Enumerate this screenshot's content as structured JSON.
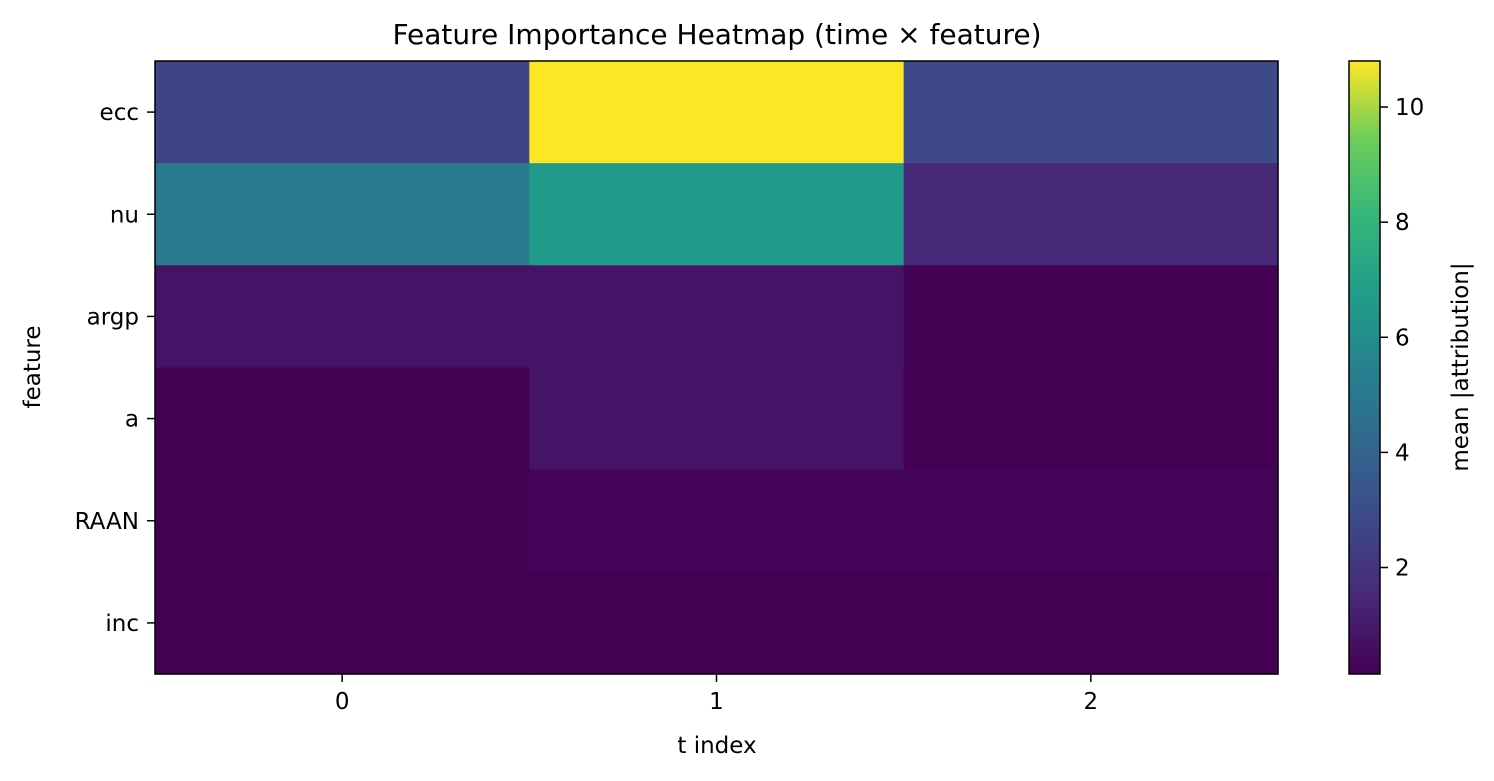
{
  "chart_data": {
    "type": "heatmap",
    "title": "Feature Importance Heatmap (time × feature)",
    "xlabel": "t index",
    "ylabel": "feature",
    "x": [
      "0",
      "1",
      "2"
    ],
    "y": [
      "ecc",
      "nu",
      "argp",
      "a",
      "RAAN",
      "inc"
    ],
    "values": [
      [
        2.6,
        10.8,
        2.8
      ],
      [
        5.0,
        6.6,
        1.5
      ],
      [
        0.8,
        0.8,
        0.2
      ],
      [
        0.15,
        0.8,
        0.15
      ],
      [
        0.15,
        0.3,
        0.3
      ],
      [
        0.15,
        0.15,
        0.15
      ]
    ],
    "colorscale": "viridis",
    "zlim": [
      0.15,
      10.8
    ],
    "colorbar": {
      "label": "mean |attribution|",
      "ticks": [
        "2",
        "4",
        "6",
        "8",
        "10"
      ]
    },
    "grid": false
  }
}
